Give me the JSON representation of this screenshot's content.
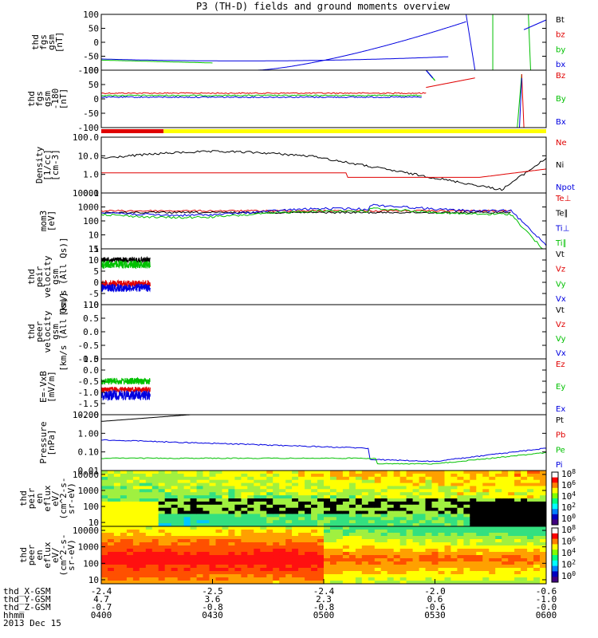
{
  "chart_data": {
    "type": "line",
    "title": "P3 (TH-D) fields and ground moments overview",
    "panels": [
      {
        "ylabel": [
          "thd",
          "fgs",
          "gsm",
          "[nT]"
        ],
        "ylim": [
          -100,
          100
        ],
        "ticks": [
          "100",
          "50",
          "0",
          "-50",
          "-100"
        ],
        "legend": [
          {
            "name": "Bt",
            "color": "#000000"
          },
          {
            "name": "bz",
            "color": "#e00000"
          },
          {
            "name": "by",
            "color": "#00c000"
          },
          {
            "name": "bx",
            "color": "#0000e0"
          }
        ]
      },
      {
        "ylabel": [
          "thd",
          "fgs",
          "gsm",
          "-180",
          "[nT]"
        ],
        "ylim": [
          -120,
          100
        ],
        "ticks": [
          "100",
          "50",
          "0",
          "-50",
          "-100"
        ],
        "legend": [
          {
            "name": "Bz",
            "color": "#e00000"
          },
          {
            "name": "By",
            "color": "#00c000"
          },
          {
            "name": "Bx",
            "color": "#0000e0"
          }
        ]
      },
      {
        "ylabel": [
          "Density",
          "[1/cc]",
          "[cm-3]"
        ],
        "log": true,
        "ticks": [
          "100.0",
          "10.0",
          "1.0",
          "0.1"
        ],
        "legend": [
          {
            "name": "Ne",
            "color": "#e00000"
          },
          {
            "name": "Ni",
            "color": "#000000"
          },
          {
            "name": "Npot",
            "color": "#0000e0"
          }
        ]
      },
      {
        "ylabel": [
          "mom3",
          "[eV]"
        ],
        "log": true,
        "ticks": [
          "10000",
          "1000",
          "100",
          "10",
          "1"
        ],
        "legend": [
          {
            "name": "Te⊥",
            "color": "#e00000"
          },
          {
            "name": "Te∥",
            "color": "#000000"
          },
          {
            "name": "Ti⊥",
            "color": "#0000e0"
          },
          {
            "name": "Ti∥",
            "color": "#00c000"
          }
        ]
      },
      {
        "ylabel": [
          "thd",
          "peir",
          "velocity",
          "gsm",
          "[km/s (All Qs)]"
        ],
        "ylim": [
          -10,
          15
        ],
        "ticks": [
          "15",
          "10",
          "5",
          "0",
          "-5",
          "-10"
        ],
        "legend": [
          {
            "name": "Vt",
            "color": "#000000"
          },
          {
            "name": "Vz",
            "color": "#e00000"
          },
          {
            "name": "Vy",
            "color": "#00c000"
          },
          {
            "name": "Vx",
            "color": "#0000e0"
          }
        ]
      },
      {
        "ylabel": [
          "thd",
          "peer",
          "velocity",
          "gsm",
          "[km/s (All Qs)]"
        ],
        "ylim": [
          -1,
          1
        ],
        "ticks": [
          "1.0",
          "0.5",
          "0.0",
          "-0.5",
          "-1.0"
        ],
        "legend": [
          {
            "name": "Vt",
            "color": "#000000"
          },
          {
            "name": "Vz",
            "color": "#e00000"
          },
          {
            "name": "Vy",
            "color": "#00c000"
          },
          {
            "name": "Vx",
            "color": "#0000e0"
          }
        ]
      },
      {
        "ylabel": [
          "E=-VxB",
          "[mV/m]"
        ],
        "ylim": [
          -2,
          0.5
        ],
        "ticks": [
          "0.5",
          "0.0",
          "-0.5",
          "-1.0",
          "-1.5",
          "-2.0"
        ],
        "legend": [
          {
            "name": "Ez",
            "color": "#e00000"
          },
          {
            "name": "Ey",
            "color": "#00c000"
          },
          {
            "name": "Ex",
            "color": "#0000e0"
          }
        ]
      },
      {
        "ylabel": [
          "Pressure",
          "[nPa]"
        ],
        "log": true,
        "ticks": [
          "10.00",
          "1.00",
          "0.10",
          "0.01"
        ],
        "legend": [
          {
            "name": "Pt",
            "color": "#000000"
          },
          {
            "name": "Pb",
            "color": "#e00000"
          },
          {
            "name": "Pe",
            "color": "#00c000"
          },
          {
            "name": "Pi",
            "color": "#0000e0"
          }
        ]
      },
      {
        "type": "heatmap",
        "ylabel": [
          "thd",
          "peir",
          "en",
          "eflux",
          "eV/",
          "(cm^2-s-",
          "sr-eV)"
        ],
        "ticks": [
          "10000",
          "1000",
          "100",
          "10"
        ],
        "colorbar": [
          "10^8",
          "10^6",
          "10^4",
          "10^2",
          "10^0"
        ]
      },
      {
        "type": "heatmap",
        "ylabel": [
          "thd",
          "peer",
          "en",
          "eflux",
          "eV/",
          "(cm^2-s-",
          "sr-eV)"
        ],
        "ticks": [
          "10000",
          "1000",
          "100",
          "10"
        ],
        "colorbar": [
          "10^8",
          "10^6",
          "10^4",
          "10^2",
          "10^0"
        ]
      }
    ],
    "x_ticks": [
      {
        "X": "-2.4",
        "Y": "4.7",
        "Z": "-0.7",
        "hhmm": "0400"
      },
      {
        "X": "-2.5",
        "Y": "3.6",
        "Z": "-0.8",
        "hhmm": "0430"
      },
      {
        "X": "-2.4",
        "Y": "2.3",
        "Z": "-0.8",
        "hhmm": "0500"
      },
      {
        "X": "-2.0",
        "Y": "0.6",
        "Z": "-0.6",
        "hhmm": "0530"
      },
      {
        "X": "-0.6",
        "Y": "-1.0",
        "Z": "-0.0",
        "hhmm": "0600"
      }
    ],
    "row_labels": [
      "thd_X-GSM",
      "thd_Y-GSM",
      "thd_Z-GSM",
      "hhmm"
    ],
    "date": "2013 Dec 15"
  }
}
